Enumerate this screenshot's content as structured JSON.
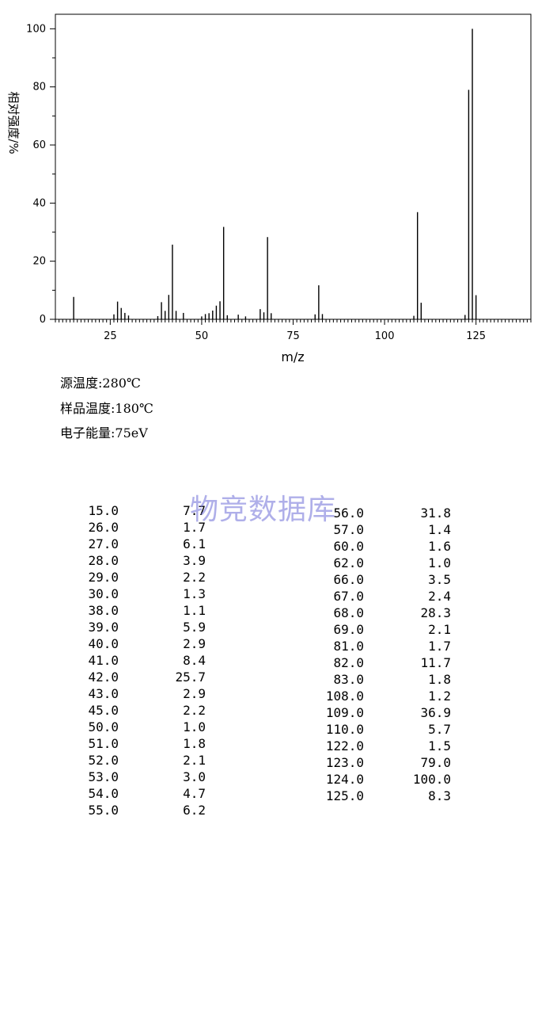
{
  "chart_data": {
    "type": "bar",
    "title": "",
    "xlabel": "m/z",
    "ylabel": "相对强度/%",
    "xlim": [
      10,
      140
    ],
    "ylim": [
      0,
      105
    ],
    "xticks": [
      25,
      50,
      75,
      100,
      125
    ],
    "yticks": [
      0,
      20,
      40,
      60,
      80,
      100
    ],
    "grid": false,
    "x": [
      15,
      26,
      27,
      28,
      29,
      30,
      38,
      39,
      40,
      41,
      42,
      43,
      45,
      50,
      51,
      52,
      53,
      54,
      55,
      56,
      57,
      60,
      62,
      66,
      67,
      68,
      69,
      81,
      82,
      83,
      108,
      109,
      110,
      122,
      123,
      124,
      125
    ],
    "values": [
      7.7,
      1.7,
      6.1,
      3.9,
      2.2,
      1.3,
      1.1,
      5.9,
      2.9,
      8.4,
      25.7,
      2.9,
      2.2,
      1.0,
      1.8,
      2.1,
      3.0,
      4.7,
      6.2,
      31.8,
      1.4,
      1.6,
      1.0,
      3.5,
      2.4,
      28.3,
      2.1,
      1.7,
      11.7,
      1.8,
      1.2,
      36.9,
      5.7,
      1.5,
      79.0,
      100.0,
      8.3
    ]
  },
  "conditions": {
    "source_temp": "源温度:280℃",
    "sample_temp": "样品温度:180℃",
    "electron_energy": "电子能量:75eV"
  },
  "watermark": "物竞数据库",
  "peak_table": {
    "left": [
      {
        "mz": "15.0",
        "intensity": "7.7"
      },
      {
        "mz": "26.0",
        "intensity": "1.7"
      },
      {
        "mz": "27.0",
        "intensity": "6.1"
      },
      {
        "mz": "28.0",
        "intensity": "3.9"
      },
      {
        "mz": "29.0",
        "intensity": "2.2"
      },
      {
        "mz": "30.0",
        "intensity": "1.3"
      },
      {
        "mz": "38.0",
        "intensity": "1.1"
      },
      {
        "mz": "39.0",
        "intensity": "5.9"
      },
      {
        "mz": "40.0",
        "intensity": "2.9"
      },
      {
        "mz": "41.0",
        "intensity": "8.4"
      },
      {
        "mz": "42.0",
        "intensity": "25.7"
      },
      {
        "mz": "43.0",
        "intensity": "2.9"
      },
      {
        "mz": "45.0",
        "intensity": "2.2"
      },
      {
        "mz": "50.0",
        "intensity": "1.0"
      },
      {
        "mz": "51.0",
        "intensity": "1.8"
      },
      {
        "mz": "52.0",
        "intensity": "2.1"
      },
      {
        "mz": "53.0",
        "intensity": "3.0"
      },
      {
        "mz": "54.0",
        "intensity": "4.7"
      },
      {
        "mz": "55.0",
        "intensity": "6.2"
      }
    ],
    "right": [
      {
        "mz": "56.0",
        "intensity": "31.8"
      },
      {
        "mz": "57.0",
        "intensity": "1.4"
      },
      {
        "mz": "60.0",
        "intensity": "1.6"
      },
      {
        "mz": "62.0",
        "intensity": "1.0"
      },
      {
        "mz": "66.0",
        "intensity": "3.5"
      },
      {
        "mz": "67.0",
        "intensity": "2.4"
      },
      {
        "mz": "68.0",
        "intensity": "28.3"
      },
      {
        "mz": "69.0",
        "intensity": "2.1"
      },
      {
        "mz": "81.0",
        "intensity": "1.7"
      },
      {
        "mz": "82.0",
        "intensity": "11.7"
      },
      {
        "mz": "83.0",
        "intensity": "1.8"
      },
      {
        "mz": "108.0",
        "intensity": "1.2"
      },
      {
        "mz": "109.0",
        "intensity": "36.9"
      },
      {
        "mz": "110.0",
        "intensity": "5.7"
      },
      {
        "mz": "122.0",
        "intensity": "1.5"
      },
      {
        "mz": "123.0",
        "intensity": "79.0"
      },
      {
        "mz": "124.0",
        "intensity": "100.0"
      },
      {
        "mz": "125.0",
        "intensity": "8.3"
      }
    ]
  }
}
